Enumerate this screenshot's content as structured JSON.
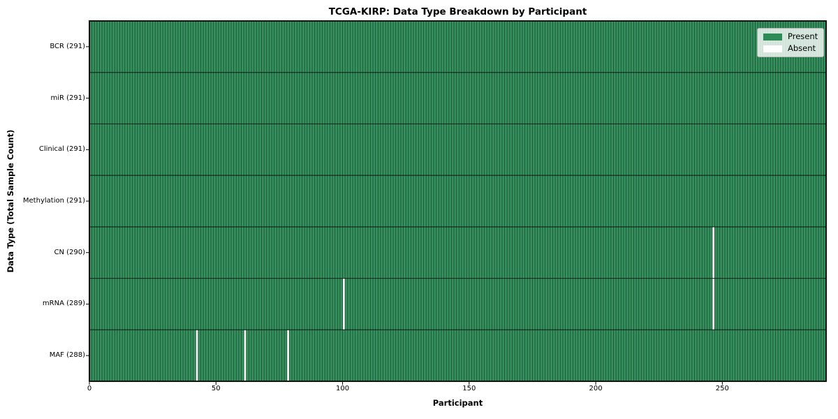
{
  "chart_data": {
    "type": "heatmap",
    "title": "TCGA-KIRP: Data Type Breakdown by Participant",
    "xlabel": "Participant",
    "ylabel": "Data Type (Total Sample Count)",
    "n_participants": 291,
    "x_range": [
      0,
      291
    ],
    "x_ticks": [
      0,
      50,
      100,
      150,
      200,
      250
    ],
    "grid": false,
    "legend_position": "upper right",
    "rows": [
      {
        "name": "BCR",
        "label": "BCR (291)",
        "total": 291,
        "absent_participants": []
      },
      {
        "name": "miR",
        "label": "miR (291)",
        "total": 291,
        "absent_participants": []
      },
      {
        "name": "Clinical",
        "label": "Clinical (291)",
        "total": 291,
        "absent_participants": []
      },
      {
        "name": "Methylation",
        "label": "Methylation (291)",
        "total": 291,
        "absent_participants": []
      },
      {
        "name": "CN",
        "label": "CN (290)",
        "total": 290,
        "absent_participants": [
          246
        ]
      },
      {
        "name": "mRNA",
        "label": "mRNA (289)",
        "total": 289,
        "absent_participants": [
          100,
          246
        ]
      },
      {
        "name": "MAF",
        "label": "MAF (288)",
        "total": 288,
        "absent_participants": [
          42,
          61,
          78
        ]
      }
    ],
    "legend": [
      {
        "label": "Present",
        "color": "#2e8b57"
      },
      {
        "label": "Absent",
        "color": "#ffffff"
      }
    ],
    "colors": {
      "present": "#2e8b57",
      "bar_fill": "#35925f",
      "bar_edge": "rgba(0,0,0,0.45)",
      "absent": "#ffffff",
      "row_divider": "rgba(0,0,0,0.65)",
      "spine": "#000000",
      "legend_border": "#b2b2b2"
    }
  }
}
